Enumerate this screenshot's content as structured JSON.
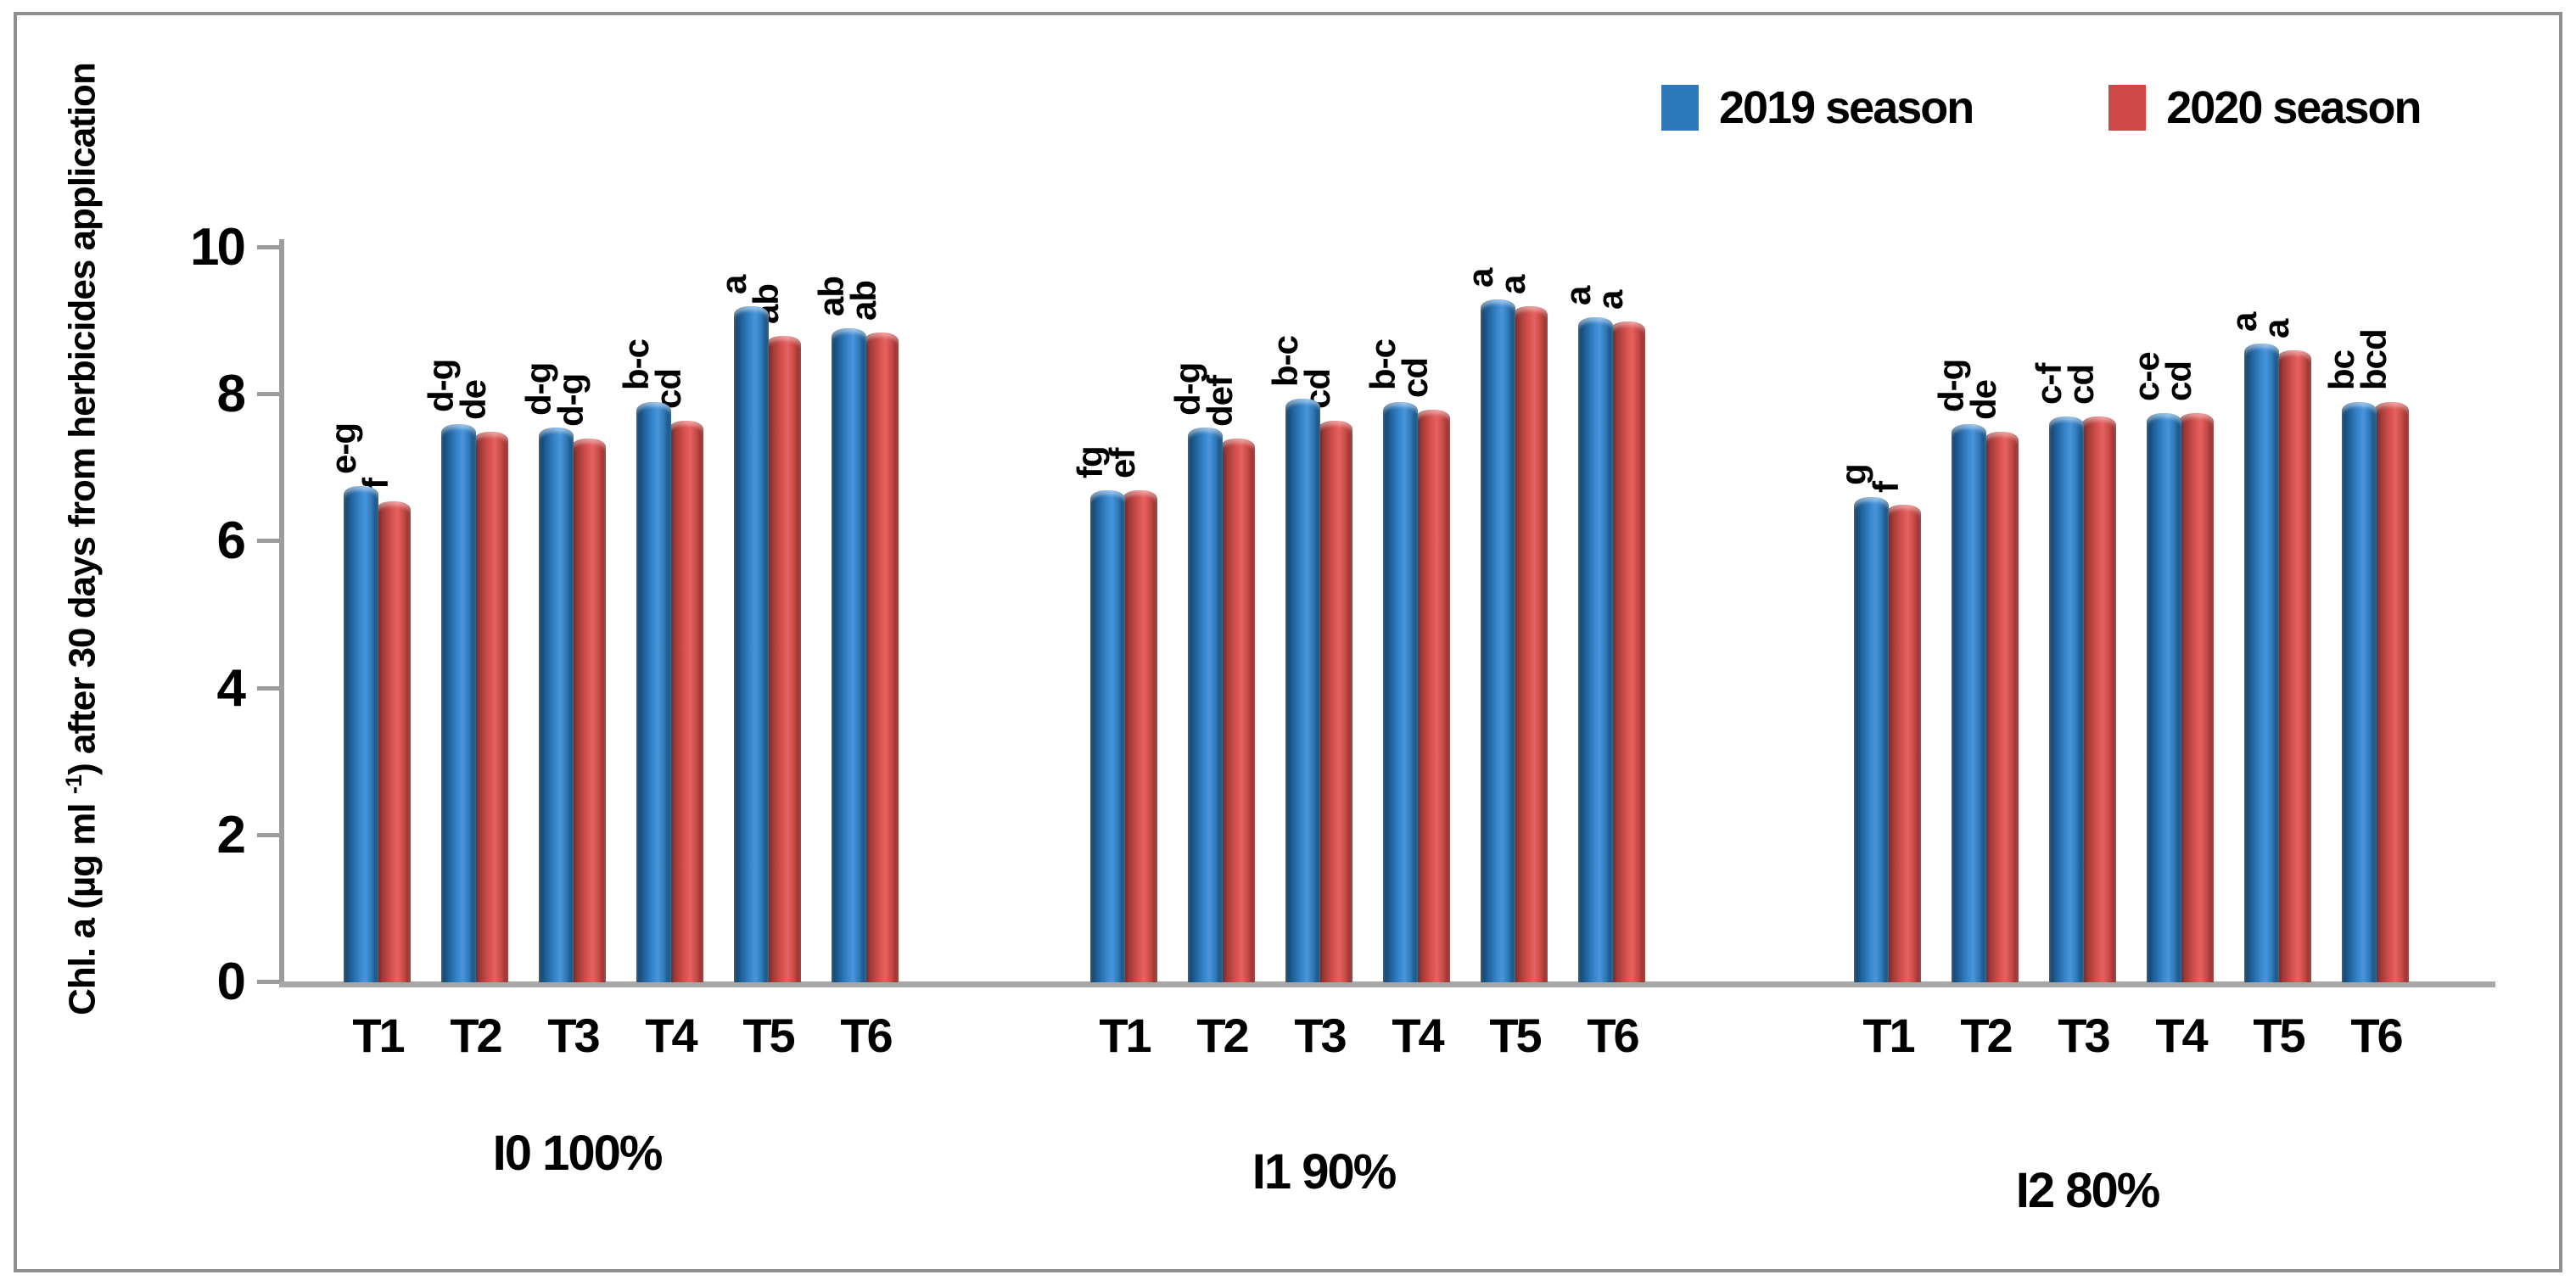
{
  "legend": {
    "items": [
      {
        "label": "2019 season",
        "color": "#2E79BB"
      },
      {
        "label": "2020 season",
        "color": "#CD4A48"
      }
    ]
  },
  "y_axis": {
    "title_prefix": "Chl. a (µg ml ",
    "title_sup": "-1",
    "title_suffix": ") after 30 days from herbicides application"
  },
  "colors": {
    "series_2019": "#2E79BB",
    "series_2020": "#CD4A48",
    "axis_gray": "#9c9c9c",
    "frame_gray": "#8f8f8f",
    "text": "#000000"
  },
  "chart_data": {
    "type": "bar",
    "title": "",
    "xlabel": "",
    "ylabel": "Chl. a (µg ml -1) after 30 days from herbicides application",
    "ylim": [
      0,
      10
    ],
    "yticks": [
      0,
      2,
      4,
      6,
      8,
      10
    ],
    "grid": false,
    "legend_position": "top-right",
    "legend_entries": [
      "2019 season",
      "2020 season"
    ],
    "categories": [
      "T1",
      "T2",
      "T3",
      "T4",
      "T5",
      "T6"
    ],
    "groups": [
      {
        "label": "I0 100%",
        "series": [
          {
            "name": "2019 season",
            "values": [
              6.75,
              7.6,
              7.55,
              7.9,
              9.2,
              8.9
            ],
            "sig_labels": [
              "e-g",
              "d-g",
              "d-g",
              "b-c",
              "a",
              "ab"
            ]
          },
          {
            "name": "2020 season",
            "values": [
              6.55,
              7.5,
              7.4,
              7.65,
              8.8,
              8.85
            ],
            "sig_labels": [
              "f",
              "de",
              "d-g",
              "cd",
              "ab",
              "ab"
            ]
          }
        ]
      },
      {
        "label": "I1 90%",
        "series": [
          {
            "name": "2019 season",
            "values": [
              6.7,
              7.55,
              7.95,
              7.9,
              9.3,
              9.05
            ],
            "sig_labels": [
              "fg",
              "d-g",
              "b-c",
              "b-c",
              "a",
              "a"
            ]
          },
          {
            "name": "2020 season",
            "values": [
              6.7,
              7.4,
              7.65,
              7.8,
              9.2,
              9.0
            ],
            "sig_labels": [
              "ef",
              "def",
              "cd",
              "cd",
              "a",
              "a"
            ]
          }
        ]
      },
      {
        "label": "I2 80%",
        "series": [
          {
            "name": "2019 season",
            "values": [
              6.6,
              7.6,
              7.7,
              7.75,
              8.7,
              7.9
            ],
            "sig_labels": [
              "g",
              "d-g",
              "c-f",
              "c-e",
              "a",
              "bc"
            ]
          },
          {
            "name": "2020 season",
            "values": [
              6.5,
              7.5,
              7.7,
              7.75,
              8.6,
              7.9
            ],
            "sig_labels": [
              "f",
              "de",
              "cd",
              "cd",
              "a",
              "bcd"
            ]
          }
        ]
      }
    ]
  }
}
